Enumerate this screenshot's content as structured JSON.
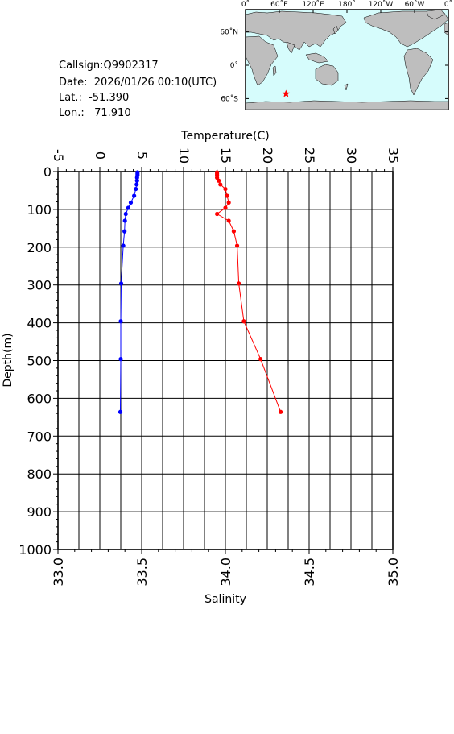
{
  "header": {
    "callsign": "Callsign:Q9902317",
    "date": "Date:  2026/01/26 00:10(UTC)",
    "lat": "Lat.:  -51.390",
    "lon": "Lon.:   71.910"
  },
  "map": {
    "lon_labels": [
      "0˚",
      "60˚E",
      "120˚E",
      "180˚",
      "120˚W",
      "60˚W",
      "0˚"
    ],
    "lat_labels": [
      "60˚N",
      "0˚",
      "60˚S"
    ],
    "ocean_color": "#d6fcfc",
    "land_color": "#bebebe",
    "marker_color": "#ff0000",
    "marker_lat": -51.39,
    "marker_lon": 71.91
  },
  "chart_data": {
    "type": "line",
    "ylabel": "Depth(m)",
    "ylim": [
      1000,
      0
    ],
    "y_ticks": [
      "0",
      "100",
      "200",
      "300",
      "400",
      "500",
      "600",
      "700",
      "800",
      "900",
      "1000"
    ],
    "temperature_axis": {
      "label": "Temperature(C)",
      "range": [
        -5,
        35
      ],
      "ticks": [
        "-5",
        "0",
        "5",
        "10",
        "15",
        "20",
        "25",
        "30",
        "35"
      ]
    },
    "salinity_axis": {
      "label": "Salinity",
      "range": [
        33.0,
        35.0
      ],
      "ticks": [
        "33.0",
        "33.5",
        "34.0",
        "34.5",
        "35.0"
      ]
    },
    "grid": true,
    "series": [
      {
        "axis": "temperature",
        "color": "#0000ff",
        "depth": [
          2,
          6,
          10,
          16,
          24,
          34,
          46,
          64,
          82,
          96,
          112,
          130,
          158,
          196,
          296,
          396,
          496,
          636
        ],
        "values": [
          4.5,
          4.5,
          4.5,
          4.45,
          4.45,
          4.4,
          4.3,
          4.1,
          3.7,
          3.4,
          3.1,
          3.0,
          2.95,
          2.8,
          2.55,
          2.5,
          2.5,
          2.45
        ]
      },
      {
        "axis": "salinity",
        "color": "#ff0000",
        "depth": [
          2,
          6,
          10,
          16,
          24,
          34,
          46,
          64,
          82,
          96,
          112,
          130,
          158,
          196,
          296,
          396,
          496,
          636
        ],
        "values": [
          33.95,
          33.95,
          33.95,
          33.95,
          33.96,
          33.97,
          34.0,
          34.01,
          34.02,
          34.0,
          33.95,
          34.02,
          34.05,
          34.07,
          34.08,
          34.11,
          34.21,
          34.33
        ]
      }
    ]
  }
}
